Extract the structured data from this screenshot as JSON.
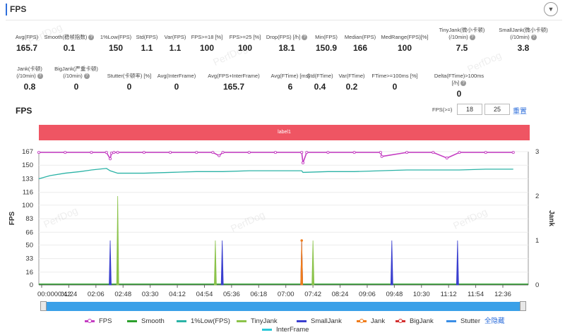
{
  "header": {
    "title": "FPS"
  },
  "watermark": "PerfDog",
  "metrics_row1": [
    {
      "label": "Avg(FPS)",
      "value": "165.7",
      "help": false
    },
    {
      "label": "Smooth(稳帧指数)",
      "value": "0.1",
      "help": true
    },
    {
      "label": "1%Low(FPS)",
      "value": "150",
      "help": false
    },
    {
      "label": "Std(FPS)",
      "value": "1.1",
      "help": false
    },
    {
      "label": "Var(FPS)",
      "value": "1.1",
      "help": false
    },
    {
      "label": "FPS>=18 [%]",
      "value": "100",
      "help": false
    },
    {
      "label": "FPS>=25 [%]",
      "value": "100",
      "help": false
    },
    {
      "label": "Drop(FPS) [/h]",
      "value": "18.1",
      "help": true
    },
    {
      "label": "Min(FPS)",
      "value": "150.9",
      "help": false
    },
    {
      "label": "Median(FPS)",
      "value": "166",
      "help": false
    },
    {
      "label": "MedRange(FPS)[%]",
      "value": "100",
      "help": false
    },
    {
      "label": "TinyJank(微小卡顿)\n(/10min)",
      "value": "7.5",
      "help": true
    },
    {
      "label": "SmallJank(微小卡顿)\n(/10min)",
      "value": "3.8",
      "help": true
    }
  ],
  "metrics_row2": [
    {
      "label": "Jank(卡顿)\n(/10min)",
      "value": "0.8",
      "help": true
    },
    {
      "label": "BigJank(严重卡顿)\n(/10min)",
      "value": "0",
      "help": true
    },
    {
      "label": "Stutter(卡顿率) [%]",
      "value": "0",
      "help": false
    },
    {
      "label": "Avg(InterFrame)",
      "value": "0",
      "help": false
    },
    {
      "label": "Avg(FPS+InterFrame)",
      "value": "165.7",
      "help": false
    },
    {
      "label": "Avg(FTime) [ms]",
      "value": "6",
      "help": false
    },
    {
      "label": "Std(FTime)",
      "value": "0.4",
      "help": false
    },
    {
      "label": "Var(FTime)",
      "value": "0.2",
      "help": false
    },
    {
      "label": "FTime>=100ms [%]",
      "value": "0",
      "help": false
    },
    {
      "label": "Delta(FTime)>100ms [/h]",
      "value": "0",
      "help": true
    }
  ],
  "chart_header": {
    "title": "FPS",
    "threshold_label": "FPS(>=)",
    "threshold_1": "18",
    "threshold_2": "25",
    "reset_label": "重置"
  },
  "label_band": "label1",
  "colors": {
    "fps": "#c43dc2",
    "smooth": "#2ca02c",
    "low1": "#2bb3a6",
    "tinyjank": "#8bc34a",
    "smalljank": "#3a3fcf",
    "jank": "#f07c1a",
    "bigjank": "#d32f2f",
    "stutter": "#3a8ee6",
    "interframe": "#29c8d8",
    "band": "#ef5563",
    "slider": "#3aa0e8"
  },
  "chart_data": {
    "type": "line",
    "ylabel": "FPS",
    "y2label": "Jank",
    "ylim": [
      0,
      167
    ],
    "yticks": [
      0,
      16,
      33,
      50,
      66,
      83,
      100,
      116,
      133,
      150,
      167
    ],
    "y2lim": [
      0,
      3
    ],
    "y2ticks": [
      0,
      1,
      2,
      3
    ],
    "xlim_s": [
      42,
      824
    ],
    "xticks": [
      "00:0000:42",
      "01:24",
      "02:06",
      "02:48",
      "03:30",
      "04:12",
      "04:54",
      "05:36",
      "06:18",
      "07:00",
      "07:42",
      "08:24",
      "09:06",
      "09:48",
      "10:30",
      "11:12",
      "11:54",
      "12:36"
    ],
    "grid": true,
    "series": [
      {
        "name": "FPS",
        "key": "fps",
        "x": [
          "00:42",
          "01:24",
          "02:06",
          "02:30",
          "02:36",
          "02:38",
          "02:42",
          "02:48",
          "03:30",
          "04:12",
          "04:54",
          "05:20",
          "05:30",
          "05:36",
          "06:18",
          "07:00",
          "07:42",
          "07:44",
          "07:50",
          "08:24",
          "09:06",
          "09:48",
          "09:50",
          "10:30",
          "11:12",
          "11:34",
          "11:54",
          "12:36",
          "13:20"
        ],
        "y": [
          166,
          166,
          166,
          166,
          158,
          165,
          166,
          166,
          166,
          166,
          166,
          166,
          162,
          166,
          166,
          166,
          166,
          153,
          166,
          166,
          166,
          166,
          161,
          166,
          166,
          159,
          166,
          166,
          166
        ]
      },
      {
        "name": "1%Low(FPS)",
        "key": "low1",
        "x": [
          "00:42",
          "01:00",
          "01:24",
          "01:48",
          "02:06",
          "02:30",
          "02:36",
          "02:48",
          "03:30",
          "04:12",
          "04:54",
          "05:36",
          "06:18",
          "07:00",
          "07:42",
          "07:44",
          "08:24",
          "09:06",
          "09:48",
          "10:30",
          "11:12",
          "11:54",
          "12:36",
          "13:20"
        ],
        "y": [
          133,
          137,
          140,
          142,
          144,
          146,
          143,
          140,
          140,
          141,
          142,
          142,
          143,
          143,
          143,
          141,
          142,
          142,
          143,
          144,
          144,
          144,
          145,
          145
        ]
      },
      {
        "name": "TinyJank",
        "key": "tinyjank",
        "axis": "right",
        "x": [
          "02:48",
          "05:24",
          "08:00"
        ],
        "y": [
          2,
          1,
          1
        ]
      },
      {
        "name": "SmallJank",
        "key": "smalljank",
        "axis": "right",
        "x": [
          "02:36",
          "05:35",
          "07:42",
          "10:06",
          "11:51"
        ],
        "y": [
          1,
          1,
          1,
          1,
          1
        ]
      },
      {
        "name": "Jank",
        "key": "jank",
        "axis": "right",
        "x": [
          "07:42"
        ],
        "y": [
          1
        ]
      },
      {
        "name": "Smooth",
        "key": "smooth",
        "x": [],
        "y": []
      },
      {
        "name": "BigJank",
        "key": "bigjank",
        "x": [],
        "y": []
      },
      {
        "name": "Stutter",
        "key": "stutter",
        "x": [],
        "y": []
      },
      {
        "name": "InterFrame",
        "key": "interframe",
        "x": [],
        "y": []
      }
    ]
  },
  "legend": {
    "items": [
      {
        "name": "FPS",
        "key": "fps",
        "dot": true
      },
      {
        "name": "Smooth",
        "key": "smooth",
        "dot": false
      },
      {
        "name": "1%Low(FPS)",
        "key": "low1",
        "dot": false
      },
      {
        "name": "TinyJank",
        "key": "tinyjank",
        "dot": false
      },
      {
        "name": "SmallJank",
        "key": "smalljank",
        "dot": false
      },
      {
        "name": "Jank",
        "key": "jank",
        "dot": true
      },
      {
        "name": "BigJank",
        "key": "bigjank",
        "dot": true
      },
      {
        "name": "Stutter",
        "key": "stutter",
        "dot": false
      },
      {
        "name": "InterFrame",
        "key": "interframe",
        "dot": false
      }
    ],
    "hide_all_label": "全隐藏"
  }
}
